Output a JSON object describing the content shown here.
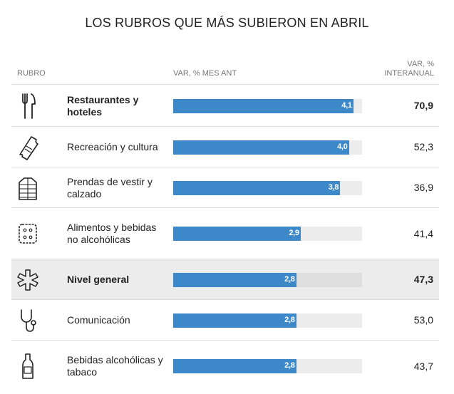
{
  "title": "LOS RUBROS QUE MÁS SUBIERON EN ABRIL",
  "headers": {
    "rubro": "RUBRO",
    "var_mes": "VAR, % MES ANT",
    "var_inter_1": "VAR, %",
    "var_inter_2": "INTERANUAL"
  },
  "colors": {
    "bar": "#3d88c8",
    "track": "#ececec",
    "highlight_row": "#ececec"
  },
  "chart_data": {
    "type": "bar",
    "title": "LOS RUBROS QUE MÁS SUBIERON EN ABRIL",
    "xlabel": "VAR, % MES ANT",
    "ylabel": "RUBRO",
    "xlim": [
      0,
      4.3
    ],
    "rows": [
      {
        "label": "Restaurantes y hoteles",
        "icon": "fork-knife-icon",
        "mes": 4.1,
        "mes_label": "4,1",
        "inter": "70,9",
        "bold": true,
        "highlight": false
      },
      {
        "label": "Recreación y cultura",
        "icon": "ticket-icon",
        "mes": 4.0,
        "mes_label": "4,0",
        "inter": "52,3",
        "bold": false,
        "highlight": false
      },
      {
        "label": "Prendas de vestir y calzado",
        "icon": "jacket-icon",
        "mes": 3.8,
        "mes_label": "3,8",
        "inter": "36,9",
        "bold": false,
        "highlight": false
      },
      {
        "label": "Alimentos y bebidas no alcohólicas",
        "icon": "biscuit-icon",
        "mes": 2.9,
        "mes_label": "2,9",
        "inter": "41,4",
        "bold": false,
        "highlight": false
      },
      {
        "label": "Nivel general",
        "icon": "asterisk-icon",
        "mes": 2.8,
        "mes_label": "2,8",
        "inter": "47,3",
        "bold": true,
        "highlight": true
      },
      {
        "label": "Comunicación",
        "icon": "stethoscope-icon",
        "mes": 2.8,
        "mes_label": "2,8",
        "inter": "53,0",
        "bold": false,
        "highlight": false
      },
      {
        "label": "Bebidas alcohólicas y tabaco",
        "icon": "bottle-icon",
        "mes": 2.8,
        "mes_label": "2,8",
        "inter": "43,7",
        "bold": false,
        "highlight": false
      }
    ]
  }
}
